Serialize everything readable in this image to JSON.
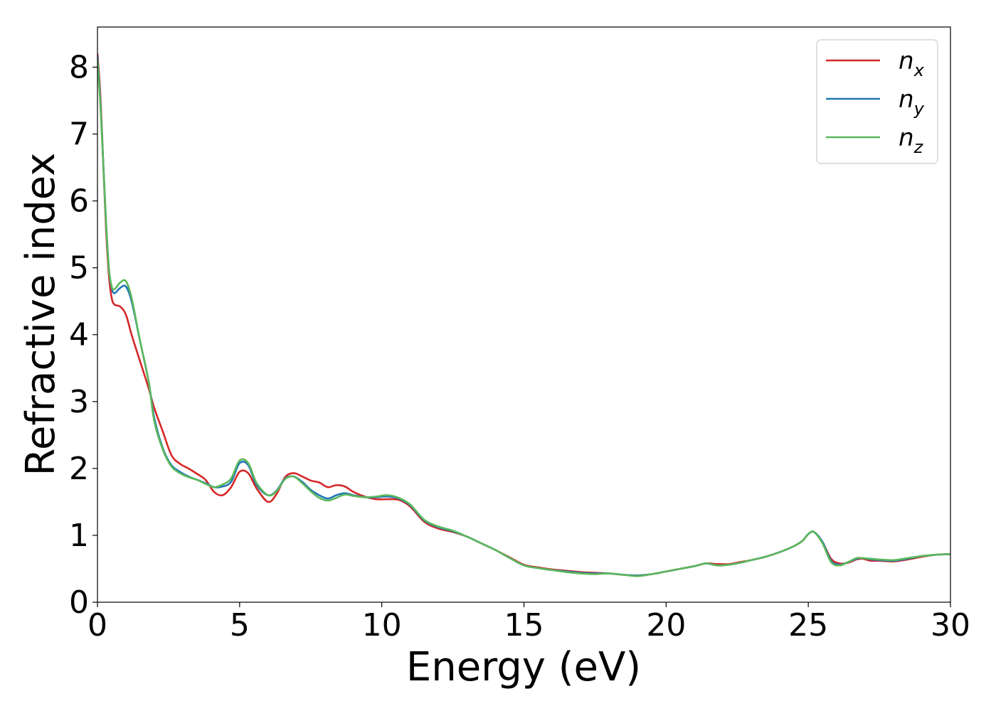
{
  "chart_data": {
    "type": "line",
    "xlabel": "Energy (eV)",
    "ylabel": "Refractive index",
    "xlim": [
      0,
      30
    ],
    "ylim": [
      0,
      8.6
    ],
    "xticks": [
      "0",
      "5",
      "10",
      "15",
      "20",
      "25",
      "30"
    ],
    "yticks": [
      "0",
      "1",
      "2",
      "3",
      "4",
      "5",
      "6",
      "7",
      "8"
    ],
    "grid": false,
    "legend_position": "top-right",
    "series": [
      {
        "name": "n_x",
        "label_base": "n",
        "label_sub": "x",
        "color": "#d62728",
        "x": [
          0,
          0.1,
          0.2,
          0.3,
          0.4,
          0.5,
          0.6,
          0.8,
          1.0,
          1.2,
          1.5,
          1.8,
          2.0,
          2.3,
          2.6,
          2.9,
          3.2,
          3.5,
          3.8,
          4.1,
          4.4,
          4.7,
          5.0,
          5.3,
          5.6,
          6.0,
          6.3,
          6.6,
          6.9,
          7.2,
          7.5,
          7.8,
          8.1,
          8.4,
          8.7,
          9.0,
          9.4,
          9.8,
          10.2,
          10.6,
          11.0,
          11.5,
          12.0,
          12.5,
          13.0,
          13.5,
          14.0,
          14.5,
          15.0,
          15.5,
          16.0,
          16.5,
          17.0,
          17.5,
          18.0,
          18.5,
          19.0,
          19.5,
          20.0,
          20.5,
          21.0,
          21.4,
          21.8,
          22.2,
          22.6,
          23.0,
          23.5,
          24.0,
          24.5,
          24.8,
          25.0,
          25.2,
          25.5,
          25.8,
          26.1,
          26.4,
          26.7,
          26.9,
          27.2,
          27.5,
          28.0,
          28.5,
          29.0,
          29.5,
          30.0
        ],
        "y": [
          8.2,
          7.6,
          6.6,
          5.6,
          4.9,
          4.55,
          4.45,
          4.42,
          4.3,
          4.0,
          3.6,
          3.2,
          2.9,
          2.55,
          2.2,
          2.07,
          2.0,
          1.92,
          1.83,
          1.65,
          1.6,
          1.72,
          1.95,
          1.93,
          1.7,
          1.5,
          1.62,
          1.87,
          1.93,
          1.88,
          1.82,
          1.79,
          1.72,
          1.75,
          1.73,
          1.65,
          1.58,
          1.54,
          1.54,
          1.53,
          1.43,
          1.2,
          1.1,
          1.05,
          0.98,
          0.88,
          0.78,
          0.67,
          0.56,
          0.52,
          0.49,
          0.47,
          0.45,
          0.44,
          0.43,
          0.41,
          0.4,
          0.42,
          0.46,
          0.5,
          0.54,
          0.58,
          0.57,
          0.57,
          0.6,
          0.63,
          0.68,
          0.75,
          0.84,
          0.92,
          1.02,
          1.05,
          0.9,
          0.65,
          0.58,
          0.59,
          0.64,
          0.65,
          0.62,
          0.62,
          0.61,
          0.64,
          0.68,
          0.71,
          0.72
        ]
      },
      {
        "name": "n_y",
        "label_base": "n",
        "label_sub": "y",
        "color": "#1f77b4",
        "x": [
          0,
          0.1,
          0.2,
          0.3,
          0.4,
          0.5,
          0.6,
          0.8,
          1.0,
          1.2,
          1.5,
          1.8,
          2.0,
          2.3,
          2.6,
          2.9,
          3.2,
          3.5,
          3.8,
          4.1,
          4.4,
          4.7,
          5.0,
          5.3,
          5.6,
          6.0,
          6.3,
          6.6,
          6.9,
          7.2,
          7.5,
          7.8,
          8.1,
          8.4,
          8.7,
          9.0,
          9.4,
          9.8,
          10.2,
          10.6,
          11.0,
          11.5,
          12.0,
          12.5,
          13.0,
          13.5,
          14.0,
          14.5,
          15.0,
          15.5,
          16.0,
          16.5,
          17.0,
          17.5,
          18.0,
          18.5,
          19.0,
          19.5,
          20.0,
          20.5,
          21.0,
          21.4,
          21.8,
          22.2,
          22.6,
          23.0,
          23.5,
          24.0,
          24.5,
          24.8,
          25.0,
          25.2,
          25.5,
          25.8,
          26.1,
          26.4,
          26.7,
          26.9,
          27.2,
          27.5,
          28.0,
          28.5,
          29.0,
          29.5,
          30.0
        ],
        "y": [
          8.15,
          7.5,
          6.6,
          5.7,
          5.0,
          4.7,
          4.62,
          4.7,
          4.72,
          4.5,
          3.9,
          3.3,
          2.75,
          2.3,
          2.05,
          1.95,
          1.88,
          1.83,
          1.78,
          1.72,
          1.73,
          1.8,
          2.08,
          2.05,
          1.75,
          1.6,
          1.67,
          1.85,
          1.88,
          1.8,
          1.68,
          1.6,
          1.55,
          1.6,
          1.63,
          1.6,
          1.57,
          1.57,
          1.58,
          1.55,
          1.45,
          1.22,
          1.12,
          1.06,
          0.98,
          0.88,
          0.78,
          0.66,
          0.55,
          0.51,
          0.48,
          0.46,
          0.44,
          0.43,
          0.43,
          0.41,
          0.4,
          0.42,
          0.46,
          0.5,
          0.54,
          0.58,
          0.55,
          0.56,
          0.59,
          0.63,
          0.68,
          0.75,
          0.84,
          0.92,
          1.02,
          1.05,
          0.9,
          0.62,
          0.56,
          0.6,
          0.65,
          0.66,
          0.64,
          0.63,
          0.62,
          0.65,
          0.69,
          0.71,
          0.72
        ]
      },
      {
        "name": "n_z",
        "label_base": "n",
        "label_sub": "z",
        "color": "#5cb85c",
        "x": [
          0,
          0.1,
          0.2,
          0.3,
          0.4,
          0.5,
          0.6,
          0.8,
          1.0,
          1.2,
          1.5,
          1.8,
          2.0,
          2.3,
          2.6,
          2.9,
          3.2,
          3.5,
          3.8,
          4.1,
          4.4,
          4.7,
          5.0,
          5.3,
          5.6,
          6.0,
          6.3,
          6.6,
          6.9,
          7.2,
          7.5,
          7.8,
          8.1,
          8.4,
          8.7,
          9.0,
          9.4,
          9.8,
          10.2,
          10.6,
          11.0,
          11.5,
          12.0,
          12.5,
          13.0,
          13.5,
          14.0,
          14.5,
          15.0,
          15.5,
          16.0,
          16.5,
          17.0,
          17.5,
          18.0,
          18.5,
          19.0,
          19.5,
          20.0,
          20.5,
          21.0,
          21.4,
          21.8,
          22.2,
          22.6,
          23.0,
          23.5,
          24.0,
          24.5,
          24.8,
          25.0,
          25.2,
          25.5,
          25.8,
          26.1,
          26.4,
          26.7,
          26.9,
          27.2,
          27.5,
          28.0,
          28.5,
          29.0,
          29.5,
          30.0
        ],
        "y": [
          8.1,
          7.45,
          6.6,
          5.7,
          5.0,
          4.72,
          4.68,
          4.78,
          4.8,
          4.55,
          3.9,
          3.3,
          2.7,
          2.28,
          2.03,
          1.93,
          1.87,
          1.83,
          1.77,
          1.72,
          1.76,
          1.85,
          2.12,
          2.08,
          1.78,
          1.6,
          1.66,
          1.84,
          1.88,
          1.78,
          1.66,
          1.56,
          1.52,
          1.56,
          1.61,
          1.59,
          1.57,
          1.58,
          1.6,
          1.56,
          1.46,
          1.23,
          1.13,
          1.07,
          0.98,
          0.88,
          0.78,
          0.66,
          0.55,
          0.51,
          0.48,
          0.45,
          0.43,
          0.42,
          0.43,
          0.41,
          0.39,
          0.42,
          0.46,
          0.5,
          0.54,
          0.58,
          0.55,
          0.56,
          0.59,
          0.63,
          0.68,
          0.75,
          0.84,
          0.92,
          1.02,
          1.05,
          0.88,
          0.6,
          0.55,
          0.6,
          0.66,
          0.66,
          0.65,
          0.64,
          0.63,
          0.66,
          0.69,
          0.71,
          0.72
        ]
      }
    ]
  }
}
